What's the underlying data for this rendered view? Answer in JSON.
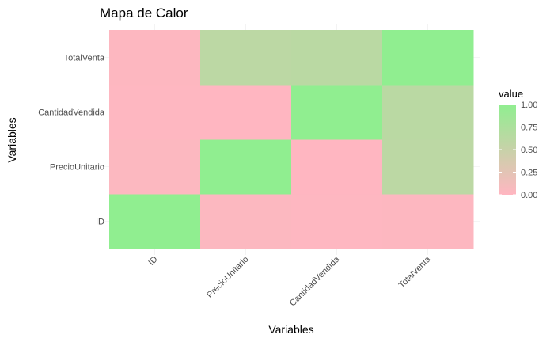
{
  "chart_data": {
    "type": "heatmap",
    "title": "Mapa de Calor",
    "xlabel": "Variables",
    "ylabel": "Variables",
    "x_categories": [
      "ID",
      "PrecioUnitario",
      "CantidadVendida",
      "TotalVenta"
    ],
    "y_categories": [
      "ID",
      "PrecioUnitario",
      "CantidadVendida",
      "TotalVenta"
    ],
    "values": [
      [
        1.0,
        0.03,
        0.01,
        0.02
      ],
      [
        0.03,
        1.0,
        0.0,
        0.6
      ],
      [
        0.01,
        0.0,
        1.0,
        0.62
      ],
      [
        0.02,
        0.6,
        0.62,
        1.0
      ]
    ],
    "color_scale": {
      "low": "#ffb6c1",
      "high": "#90ee90",
      "domain": [
        0,
        1
      ]
    },
    "legend": {
      "title": "value",
      "placement": "right",
      "ticks": [
        "0.00",
        "0.25",
        "0.50",
        "0.75",
        "1.00"
      ]
    },
    "grid": true
  }
}
